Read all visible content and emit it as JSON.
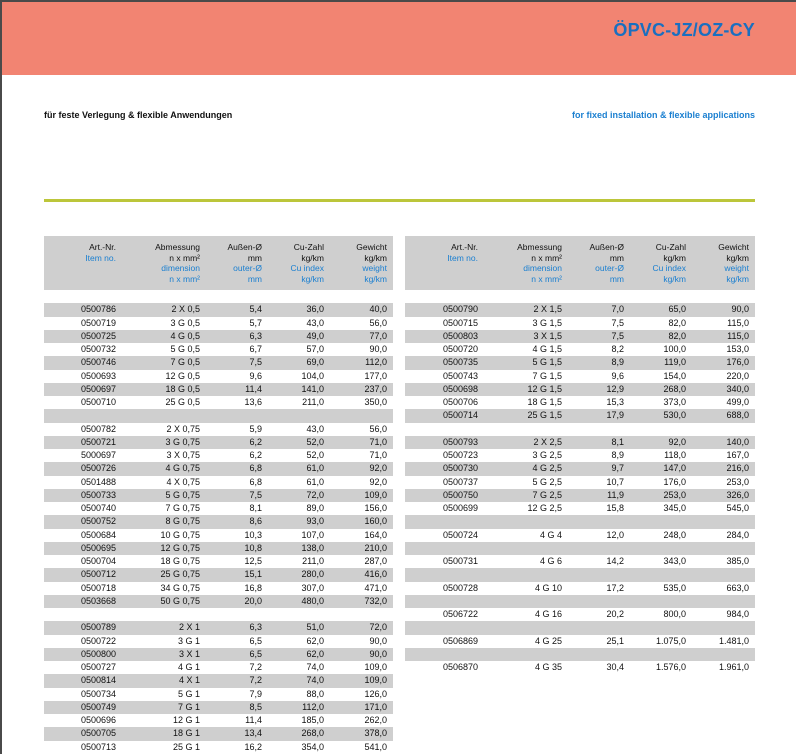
{
  "header": {
    "title": "ÖPVC-JZ/OZ-CY",
    "subtitle_de": "für feste Verlegung & flexible Anwendungen",
    "subtitle_en": "for fixed installation & flexible applications"
  },
  "columns": [
    {
      "de": [
        "Art.-Nr."
      ],
      "en": [
        "Item no."
      ]
    },
    {
      "de": [
        "Abmessung",
        "n x mm²"
      ],
      "en": [
        "dimension",
        "n x mm²"
      ]
    },
    {
      "de": [
        "Außen-Ø",
        "mm"
      ],
      "en": [
        "outer-Ø",
        "mm"
      ]
    },
    {
      "de": [
        "Cu-Zahl",
        "kg/km"
      ],
      "en": [
        "Cu index",
        "kg/km"
      ]
    },
    {
      "de": [
        "Gewicht",
        "kg/km"
      ],
      "en": [
        "weight",
        "kg/km"
      ]
    }
  ],
  "left_rows": [
    null,
    [
      "0500786",
      "2 X 0,5",
      "5,4",
      "36,0",
      "40,0"
    ],
    [
      "0500719",
      "3 G 0,5",
      "5,7",
      "43,0",
      "56,0"
    ],
    [
      "0500725",
      "4 G 0,5",
      "6,3",
      "49,0",
      "77,0"
    ],
    [
      "0500732",
      "5 G 0,5",
      "6,7",
      "57,0",
      "90,0"
    ],
    [
      "0500746",
      "7 G 0,5",
      "7,5",
      "69,0",
      "112,0"
    ],
    [
      "0500693",
      "12 G 0,5",
      "9,6",
      "104,0",
      "177,0"
    ],
    [
      "0500697",
      "18 G 0,5",
      "11,4",
      "141,0",
      "237,0"
    ],
    [
      "0500710",
      "25 G 0,5",
      "13,6",
      "211,0",
      "350,0"
    ],
    null,
    [
      "0500782",
      "2 X 0,75",
      "5,9",
      "43,0",
      "56,0"
    ],
    [
      "0500721",
      "3 G 0,75",
      "6,2",
      "52,0",
      "71,0"
    ],
    [
      "5000697",
      "3 X 0,75",
      "6,2",
      "52,0",
      "71,0"
    ],
    [
      "0500726",
      "4 G 0,75",
      "6,8",
      "61,0",
      "92,0"
    ],
    [
      "0501488",
      "4 X 0,75",
      "6,8",
      "61,0",
      "92,0"
    ],
    [
      "0500733",
      "5 G 0,75",
      "7,5",
      "72,0",
      "109,0"
    ],
    [
      "0500740",
      "7 G 0,75",
      "8,1",
      "89,0",
      "156,0"
    ],
    [
      "0500752",
      "8 G 0,75",
      "8,6",
      "93,0",
      "160,0"
    ],
    [
      "0500684",
      "10 G 0,75",
      "10,3",
      "107,0",
      "164,0"
    ],
    [
      "0500695",
      "12 G 0,75",
      "10,8",
      "138,0",
      "210,0"
    ],
    [
      "0500704",
      "18 G 0,75",
      "12,5",
      "211,0",
      "287,0"
    ],
    [
      "0500712",
      "25 G 0,75",
      "15,1",
      "280,0",
      "416,0"
    ],
    [
      "0500718",
      "34 G 0,75",
      "16,8",
      "307,0",
      "471,0"
    ],
    [
      "0503668",
      "50 G 0,75",
      "20,0",
      "480,0",
      "732,0"
    ],
    null,
    [
      "0500789",
      "2 X 1",
      "6,3",
      "51,0",
      "72,0"
    ],
    [
      "0500722",
      "3 G 1",
      "6,5",
      "62,0",
      "90,0"
    ],
    [
      "0500800",
      "3 X 1",
      "6,5",
      "62,0",
      "90,0"
    ],
    [
      "0500727",
      "4 G 1",
      "7,2",
      "74,0",
      "109,0"
    ],
    [
      "0500814",
      "4 X 1",
      "7,2",
      "74,0",
      "109,0"
    ],
    [
      "0500734",
      "5 G 1",
      "7,9",
      "88,0",
      "126,0"
    ],
    [
      "0500749",
      "7 G 1",
      "8,5",
      "112,0",
      "171,0"
    ],
    [
      "0500696",
      "12 G 1",
      "11,4",
      "185,0",
      "262,0"
    ],
    [
      "0500705",
      "18 G 1",
      "13,4",
      "268,0",
      "378,0"
    ],
    [
      "0500713",
      "25 G 1",
      "16,2",
      "354,0",
      "541,0"
    ]
  ],
  "right_rows": [
    null,
    [
      "0500790",
      "2 X 1,5",
      "7,0",
      "65,0",
      "90,0"
    ],
    [
      "0500715",
      "3 G 1,5",
      "7,5",
      "82,0",
      "115,0"
    ],
    [
      "0500803",
      "3 X 1,5",
      "7,5",
      "82,0",
      "115,0"
    ],
    [
      "0500720",
      "4 G 1,5",
      "8,2",
      "100,0",
      "153,0"
    ],
    [
      "0500735",
      "5 G 1,5",
      "8,9",
      "119,0",
      "176,0"
    ],
    [
      "0500743",
      "7 G 1,5",
      "9,6",
      "154,0",
      "220,0"
    ],
    [
      "0500698",
      "12 G 1,5",
      "12,9",
      "268,0",
      "340,0"
    ],
    [
      "0500706",
      "18 G 1,5",
      "15,3",
      "373,0",
      "499,0"
    ],
    [
      "0500714",
      "25 G 1,5",
      "17,9",
      "530,0",
      "688,0"
    ],
    null,
    [
      "0500793",
      "2 X 2,5",
      "8,1",
      "92,0",
      "140,0"
    ],
    [
      "0500723",
      "3 G 2,5",
      "8,9",
      "118,0",
      "167,0"
    ],
    [
      "0500730",
      "4 G 2,5",
      "9,7",
      "147,0",
      "216,0"
    ],
    [
      "0500737",
      "5 G 2,5",
      "10,7",
      "176,0",
      "253,0"
    ],
    [
      "0500750",
      "7 G 2,5",
      "11,9",
      "253,0",
      "326,0"
    ],
    [
      "0500699",
      "12 G 2,5",
      "15,8",
      "345,0",
      "545,0"
    ],
    null,
    [
      "0500724",
      "4 G 4",
      "12,0",
      "248,0",
      "284,0"
    ],
    null,
    [
      "0500731",
      "4 G 6",
      "14,2",
      "343,0",
      "385,0"
    ],
    null,
    [
      "0500728",
      "4 G 10",
      "17,2",
      "535,0",
      "663,0"
    ],
    null,
    [
      "0506722",
      "4 G 16",
      "20,2",
      "800,0",
      "984,0"
    ],
    null,
    [
      "0506869",
      "4 G 25",
      "25,1",
      "1.075,0",
      "1.481,0"
    ],
    null,
    [
      "0506870",
      "4 G 35",
      "30,4",
      "1.576,0",
      "1.961,0"
    ]
  ],
  "colors": {
    "banner": "#f28472",
    "title": "#1a6fc0",
    "english": "#1a7fd0",
    "rule": "#bcc63a",
    "stripe": "#cfcfcf"
  }
}
